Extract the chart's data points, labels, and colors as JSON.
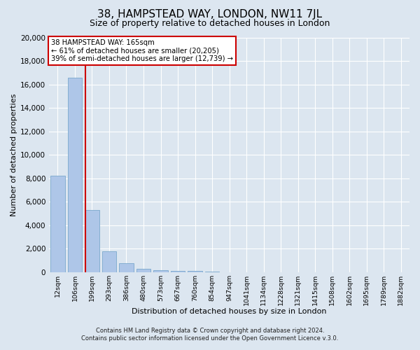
{
  "title": "38, HAMPSTEAD WAY, LONDON, NW11 7JL",
  "subtitle": "Size of property relative to detached houses in London",
  "xlabel": "Distribution of detached houses by size in London",
  "ylabel": "Number of detached properties",
  "bar_labels": [
    "12sqm",
    "106sqm",
    "199sqm",
    "293sqm",
    "386sqm",
    "480sqm",
    "573sqm",
    "667sqm",
    "760sqm",
    "854sqm",
    "947sqm",
    "1041sqm",
    "1134sqm",
    "1228sqm",
    "1321sqm",
    "1415sqm",
    "1508sqm",
    "1602sqm",
    "1695sqm",
    "1789sqm",
    "1882sqm"
  ],
  "bar_heights": [
    8200,
    16600,
    5300,
    1750,
    750,
    250,
    150,
    100,
    80,
    50,
    0,
    0,
    0,
    0,
    0,
    0,
    0,
    0,
    0,
    0,
    0
  ],
  "bar_color": "#aec6e8",
  "bar_edgecolor": "#7aa8cc",
  "vline_x": 1.62,
  "vline_color": "#cc0000",
  "annotation_title": "38 HAMPSTEAD WAY: 165sqm",
  "annotation_line2": "← 61% of detached houses are smaller (20,205)",
  "annotation_line3": "39% of semi-detached houses are larger (12,739) →",
  "annotation_box_color": "#cc0000",
  "ylim": [
    0,
    20000
  ],
  "yticks": [
    0,
    2000,
    4000,
    6000,
    8000,
    10000,
    12000,
    14000,
    16000,
    18000,
    20000
  ],
  "footnote1": "Contains HM Land Registry data © Crown copyright and database right 2024.",
  "footnote2": "Contains public sector information licensed under the Open Government Licence v.3.0.",
  "background_color": "#dce6f0",
  "plot_background": "#dce6f0"
}
